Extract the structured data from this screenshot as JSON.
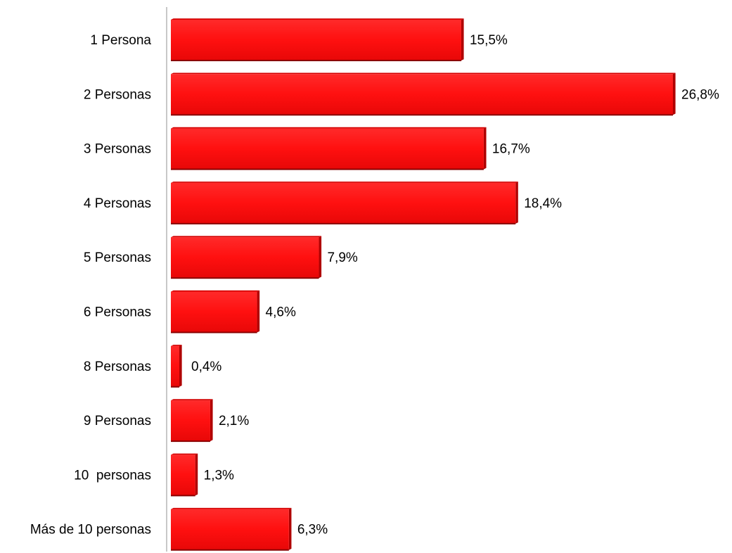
{
  "chart_data": {
    "type": "bar",
    "orientation": "horizontal",
    "categories": [
      "1 Persona",
      "2 Personas",
      "3 Personas",
      "4 Personas",
      "5 Personas",
      "6 Personas",
      "8 Personas",
      "9 Personas",
      "10  personas",
      "Más de 10 personas"
    ],
    "values": [
      15.5,
      26.8,
      16.7,
      18.4,
      7.9,
      4.6,
      0.4,
      2.1,
      1.3,
      6.3
    ],
    "value_labels": [
      "15,5%",
      "26,8%",
      "16,7%",
      "18,4%",
      "7,9%",
      "4,6%",
      "0,4%",
      "2,1%",
      "1,3%",
      "6,3%"
    ],
    "title": "",
    "xlabel": "",
    "ylabel": "",
    "xlim": [
      0,
      26.8
    ],
    "grid": false,
    "legend": "none",
    "bar_color": "#ff1010",
    "bar_shade_color": "#b00000",
    "axis_color": "#c8c8c8"
  }
}
